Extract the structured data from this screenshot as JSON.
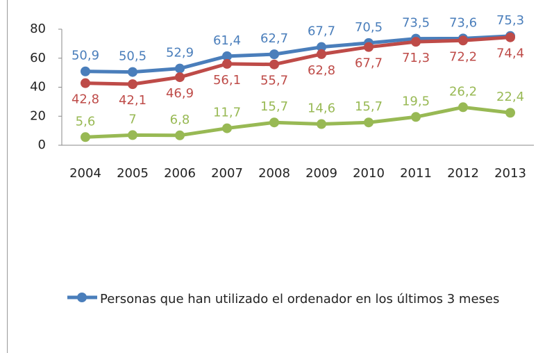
{
  "chart_data": {
    "type": "line",
    "categories": [
      "2004",
      "2005",
      "2006",
      "2007",
      "2008",
      "2009",
      "2010",
      "2011",
      "2012",
      "2013"
    ],
    "series": [
      {
        "name": "Personas que han utilizado el ordenador en los últimos 3 meses",
        "color": "#4a7ebb",
        "values": [
          50.9,
          50.5,
          52.9,
          61.4,
          62.7,
          67.7,
          70.5,
          73.5,
          73.6,
          75.3
        ],
        "value_labels": [
          "50,9",
          "50,5",
          "52,9",
          "61,4",
          "62,7",
          "67,7",
          "70,5",
          "73,5",
          "73,6",
          "75,3"
        ]
      },
      {
        "color": "#be4b48",
        "values": [
          42.8,
          42.1,
          46.9,
          56.1,
          55.7,
          62.8,
          67.7,
          71.3,
          72.2,
          74.4
        ],
        "value_labels": [
          "42,8",
          "42,1",
          "46,9",
          "56,1",
          "55,7",
          "62,8",
          "67,7",
          "71,3",
          "72,2",
          "74,4"
        ]
      },
      {
        "color": "#98b954",
        "values": [
          5.6,
          7,
          6.8,
          11.7,
          15.7,
          14.6,
          15.7,
          19.5,
          26.2,
          22.4
        ],
        "value_labels": [
          "5,6",
          "7",
          "6,8",
          "11,7",
          "15,7",
          "14,6",
          "15,7",
          "19,5",
          "26,2",
          "22,4"
        ]
      }
    ],
    "ylim": [
      0,
      80
    ],
    "yticks": [
      0,
      20,
      40,
      60,
      80
    ],
    "grid": false
  }
}
